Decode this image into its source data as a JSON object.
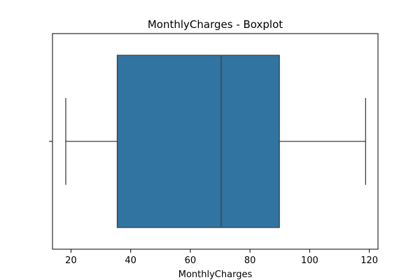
{
  "chart_data": {
    "type": "boxplot",
    "title": "MonthlyCharges - Boxplot",
    "xlabel": "MonthlyCharges",
    "ylabel": "",
    "orientation": "horizontal",
    "xlim": [
      13.8,
      122.9
    ],
    "xticks": [
      20,
      40,
      60,
      80,
      100,
      120
    ],
    "grid": false,
    "box": {
      "min": 18.25,
      "q1": 35.5,
      "median": 70.35,
      "q3": 89.85,
      "max": 118.75
    },
    "colors": {
      "box_fill": "#3274a1",
      "lines": "#3f3f3f",
      "frame": "#000000"
    }
  }
}
